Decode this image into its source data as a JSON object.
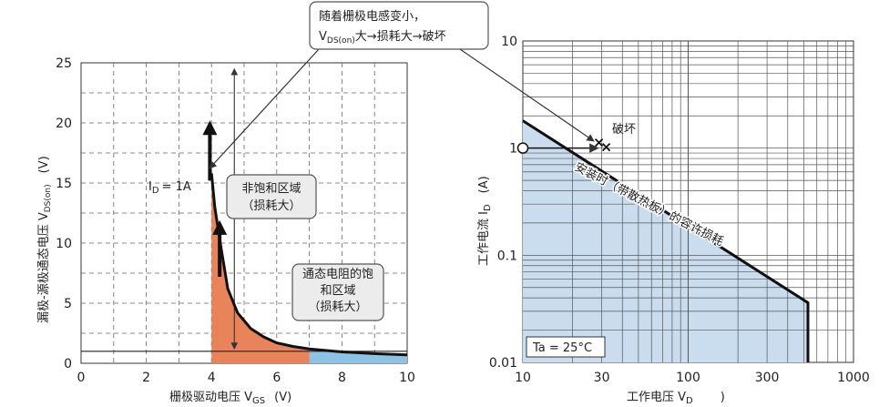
{
  "chart_data": [
    {
      "type": "area",
      "title": "",
      "xlabel": "栅极驱动电压 V",
      "xlabel_sub": "GS",
      "xlabel_unit": "(V)",
      "ylabel": "漏极-源极通态电压 V",
      "ylabel_sub": "DS(on)",
      "ylabel_unit": "(V)",
      "xlim": [
        0,
        10
      ],
      "ylim": [
        0,
        25
      ],
      "xticks": [
        "0",
        "2",
        "4",
        "6",
        "8",
        "10"
      ],
      "yticks": [
        "0",
        "5",
        "10",
        "15",
        "20",
        "25"
      ],
      "grid": true,
      "series": [
        {
          "name": "I_D = 1A",
          "x": [
            4.0,
            4.1,
            4.3,
            4.5,
            4.8,
            5.2,
            5.6,
            6.0,
            6.5,
            7.0,
            8.0,
            9.0,
            10.0
          ],
          "y": [
            15.8,
            13.0,
            9.5,
            6.2,
            4.2,
            2.9,
            2.2,
            1.7,
            1.4,
            1.2,
            0.95,
            0.8,
            0.7
          ]
        }
      ],
      "regions": [
        {
          "x": [
            4.0,
            7.0
          ],
          "color": "#e9835a"
        },
        {
          "x": [
            7.0,
            10.0
          ],
          "color": "#8fc3e6"
        }
      ],
      "reference_line_y": 1.0,
      "annotations": {
        "id_label": "I",
        "id_sub": "D",
        "id_value": "= 1A",
        "box1_line1": "非饱和区域",
        "box1_line2": "（损耗大）",
        "box2_line1": "通态电阻的饱",
        "box2_line2": "和区域",
        "box2_line3": "（损耗大）"
      }
    },
    {
      "type": "line",
      "title": "",
      "scale": "log-log",
      "xlabel": "工作电压 V",
      "xlabel_sub": "D",
      "xlabel_unit": ")",
      "ylabel": "工作电流 I",
      "ylabel_sub": "D",
      "ylabel_unit": "(A)",
      "xlim": [
        10,
        1000
      ],
      "ylim": [
        0.01,
        10
      ],
      "xticks": [
        "10",
        "30",
        "100",
        "300",
        "1000"
      ],
      "yticks": [
        "0.01",
        "0.1",
        "1",
        "10"
      ],
      "grid": true,
      "series": [
        {
          "name": "安装时（带散热板）的容许损耗",
          "x": [
            10,
            530,
            530
          ],
          "y": [
            1.8,
            0.036,
            0.01
          ]
        }
      ],
      "operating_point": {
        "x": 10,
        "y": 1.0
      },
      "damage_point": {
        "x": 30,
        "y": 1.0
      },
      "annotations": {
        "damage_label": "破坏",
        "ta_label": "Ta = 25°C"
      }
    }
  ],
  "callout": {
    "line1": "随着栅极电感变小，",
    "line2_prefix": "V",
    "line2_sub": "DS(on)",
    "line2_suffix": "大→损耗大→破坏"
  }
}
